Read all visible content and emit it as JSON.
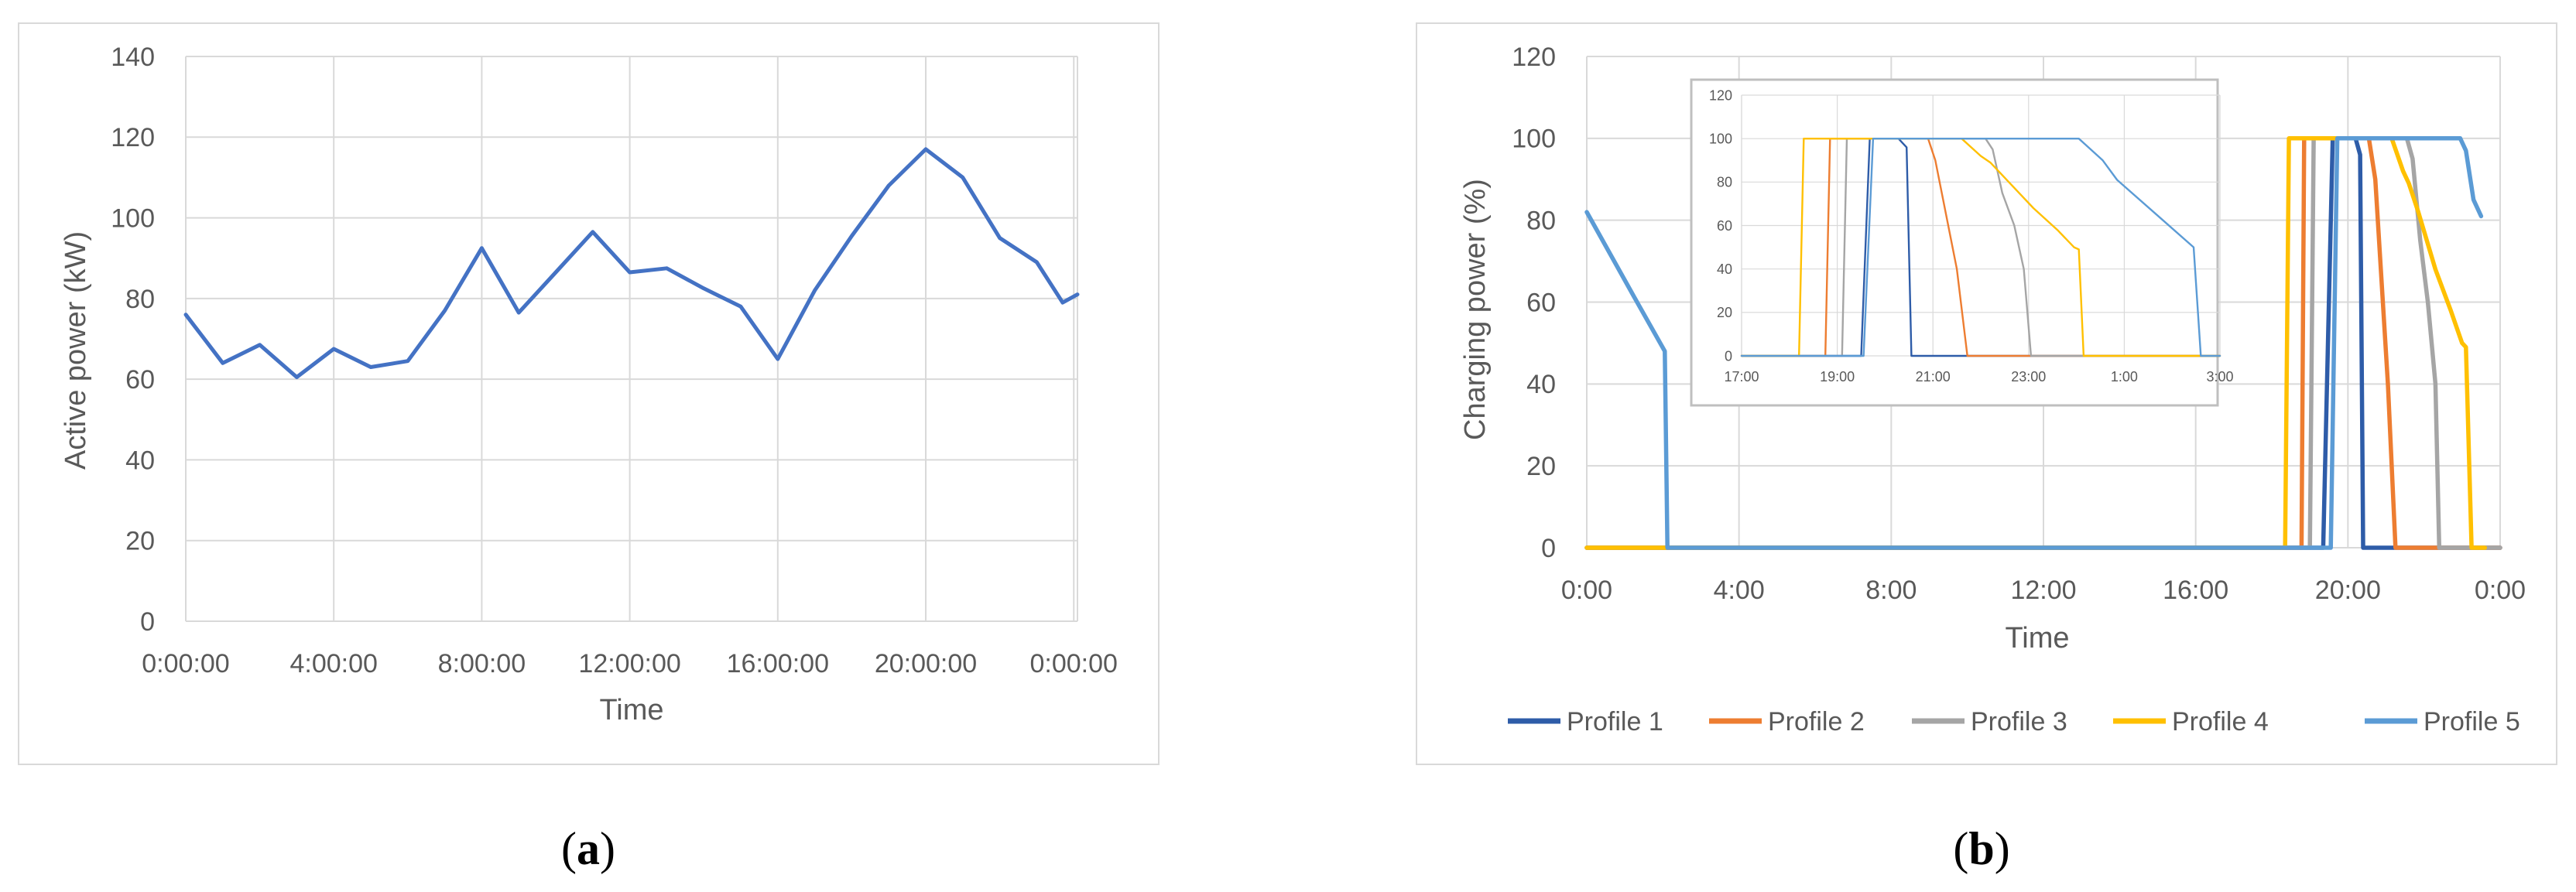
{
  "colors": {
    "grid": "#d9d9d9",
    "frame": "#d9d9d9",
    "inset_frame": "#bfbfbf",
    "axis_text": "#595959",
    "series_a": "#4472c4"
  },
  "panels": {
    "a": {
      "label_open": "(",
      "label_letter": "a",
      "label_close": ")"
    },
    "b": {
      "label_open": "(",
      "label_letter": "b",
      "label_close": ")"
    }
  },
  "chart_data": [
    {
      "id": "a",
      "type": "line",
      "xlabel": "Time",
      "ylabel": "Active power (kW)",
      "ylim": [
        0,
        140
      ],
      "yticks": [
        0,
        20,
        40,
        60,
        80,
        100,
        120,
        140
      ],
      "xlim": [
        0,
        24.1
      ],
      "xticks": [
        {
          "x": 0,
          "label": "0:00:00"
        },
        {
          "x": 4,
          "label": "4:00:00"
        },
        {
          "x": 8,
          "label": "8:00:00"
        },
        {
          "x": 12,
          "label": "12:00:00"
        },
        {
          "x": 16,
          "label": "16:00:00"
        },
        {
          "x": 20,
          "label": "20:00:00"
        },
        {
          "x": 24,
          "label": "0:00:00"
        }
      ],
      "grid": true,
      "series": [
        {
          "color": "#4472c4",
          "points": [
            [
              0,
              76
            ],
            [
              1,
              64
            ],
            [
              2,
              68.5
            ],
            [
              3,
              60.5
            ],
            [
              4,
              67.5
            ],
            [
              5,
              63
            ],
            [
              6,
              64.5
            ],
            [
              7,
              77
            ],
            [
              8,
              92.5
            ],
            [
              9,
              76.5
            ],
            [
              10,
              86.5
            ],
            [
              11,
              96.5
            ],
            [
              12,
              86.5
            ],
            [
              13,
              87.5
            ],
            [
              14,
              82.5
            ],
            [
              15,
              78
            ],
            [
              16,
              65
            ],
            [
              17,
              82
            ],
            [
              18,
              95.5
            ],
            [
              19,
              108
            ],
            [
              20,
              117
            ],
            [
              21,
              110
            ],
            [
              22,
              95
            ],
            [
              23,
              89
            ],
            [
              23.7,
              79
            ],
            [
              24.1,
              81
            ]
          ]
        }
      ]
    },
    {
      "id": "b",
      "type": "line",
      "xlabel": "Time",
      "ylabel": "Charging power (%)",
      "ylim": [
        0,
        120
      ],
      "yticks": [
        0,
        20,
        40,
        60,
        80,
        100,
        120
      ],
      "xlim": [
        0,
        24
      ],
      "xticks": [
        {
          "x": 0,
          "label": "0:00"
        },
        {
          "x": 4,
          "label": "4:00"
        },
        {
          "x": 8,
          "label": "8:00"
        },
        {
          "x": 12,
          "label": "12:00"
        },
        {
          "x": 16,
          "label": "16:00"
        },
        {
          "x": 20,
          "label": "20:00"
        },
        {
          "x": 24,
          "label": "0:00"
        }
      ],
      "grid": true,
      "legend_position": "bottom",
      "series": [
        {
          "name": "Profile 1",
          "color": "#2e5ca8",
          "points": [
            [
              0,
              0
            ],
            [
              19.35,
              0
            ],
            [
              19.6,
              100
            ],
            [
              20.2,
              100
            ],
            [
              20.32,
              96
            ],
            [
              20.4,
              0
            ],
            [
              24,
              0
            ]
          ]
        },
        {
          "name": "Profile 2",
          "color": "#ed7d31",
          "points": [
            [
              0,
              0
            ],
            [
              18.78,
              0
            ],
            [
              18.85,
              100
            ],
            [
              20.55,
              100
            ],
            [
              20.72,
              90
            ],
            [
              21.05,
              40
            ],
            [
              21.25,
              0
            ],
            [
              24,
              0
            ]
          ]
        },
        {
          "name": "Profile 3",
          "color": "#a5a5a5",
          "points": [
            [
              0,
              0
            ],
            [
              19.0,
              0
            ],
            [
              19.1,
              100
            ],
            [
              21.55,
              100
            ],
            [
              21.7,
              95
            ],
            [
              21.9,
              75
            ],
            [
              22.1,
              60
            ],
            [
              22.3,
              40
            ],
            [
              22.4,
              0
            ],
            [
              24,
              0
            ]
          ]
        },
        {
          "name": "Profile 4",
          "color": "#ffc000",
          "points": [
            [
              0,
              0
            ],
            [
              18.35,
              0
            ],
            [
              18.45,
              100
            ],
            [
              21.15,
              100
            ],
            [
              21.45,
              92
            ],
            [
              21.6,
              89
            ],
            [
              21.85,
              82
            ],
            [
              22.3,
              68
            ],
            [
              22.7,
              58
            ],
            [
              23.0,
              50
            ],
            [
              23.1,
              49
            ],
            [
              23.25,
              0
            ],
            [
              23.6,
              0
            ]
          ]
        },
        {
          "name": "Profile 5",
          "color": "#5b9bd5",
          "points": [
            [
              0,
              82
            ],
            [
              1.2,
              62
            ],
            [
              2.05,
              48
            ],
            [
              2.12,
              0
            ],
            [
              19.55,
              0
            ],
            [
              19.72,
              100
            ],
            [
              22.95,
              100
            ],
            [
              23.1,
              97
            ],
            [
              23.3,
              85
            ],
            [
              23.5,
              81
            ]
          ]
        }
      ],
      "inset": {
        "ylim": [
          0,
          120
        ],
        "yticks": [
          0,
          20,
          40,
          60,
          80,
          100,
          120
        ],
        "xlim": [
          17,
          27
        ],
        "xticks": [
          {
            "x": 17,
            "label": "17:00"
          },
          {
            "x": 19,
            "label": "19:00"
          },
          {
            "x": 21,
            "label": "21:00"
          },
          {
            "x": 23,
            "label": "23:00"
          },
          {
            "x": 25,
            "label": "1:00"
          },
          {
            "x": 27,
            "label": "3:00"
          }
        ],
        "series": [
          {
            "name": "Profile 1",
            "color": "#2e5ca8",
            "points": [
              [
                17,
                0
              ],
              [
                19.5,
                0
              ],
              [
                19.68,
                100
              ],
              [
                20.28,
                100
              ],
              [
                20.45,
                96
              ],
              [
                20.55,
                0
              ],
              [
                27,
                0
              ]
            ]
          },
          {
            "name": "Profile 2",
            "color": "#ed7d31",
            "points": [
              [
                17,
                0
              ],
              [
                18.75,
                0
              ],
              [
                18.85,
                100
              ],
              [
                20.9,
                100
              ],
              [
                21.05,
                90
              ],
              [
                21.5,
                40
              ],
              [
                21.72,
                0
              ],
              [
                27,
                0
              ]
            ]
          },
          {
            "name": "Profile 3",
            "color": "#a5a5a5",
            "points": [
              [
                17,
                0
              ],
              [
                19.1,
                0
              ],
              [
                19.2,
                100
              ],
              [
                22.1,
                100
              ],
              [
                22.25,
                95
              ],
              [
                22.45,
                75
              ],
              [
                22.7,
                60
              ],
              [
                22.9,
                40
              ],
              [
                23.05,
                0
              ],
              [
                27,
                0
              ]
            ]
          },
          {
            "name": "Profile 4",
            "color": "#ffc000",
            "points": [
              [
                17,
                0
              ],
              [
                18.2,
                0
              ],
              [
                18.3,
                100
              ],
              [
                21.6,
                100
              ],
              [
                22.0,
                92
              ],
              [
                22.2,
                89
              ],
              [
                22.5,
                82
              ],
              [
                23.1,
                68
              ],
              [
                23.6,
                58
              ],
              [
                23.95,
                50
              ],
              [
                24.05,
                49
              ],
              [
                24.15,
                0
              ],
              [
                27,
                0
              ]
            ]
          },
          {
            "name": "Profile 5",
            "color": "#5b9bd5",
            "points": [
              [
                17,
                0
              ],
              [
                19.55,
                0
              ],
              [
                19.75,
                100
              ],
              [
                24.05,
                100
              ],
              [
                24.2,
                97
              ],
              [
                24.55,
                90
              ],
              [
                24.85,
                81
              ],
              [
                26.45,
                50
              ],
              [
                26.6,
                0
              ],
              [
                27,
                0
              ]
            ]
          }
        ]
      }
    }
  ]
}
